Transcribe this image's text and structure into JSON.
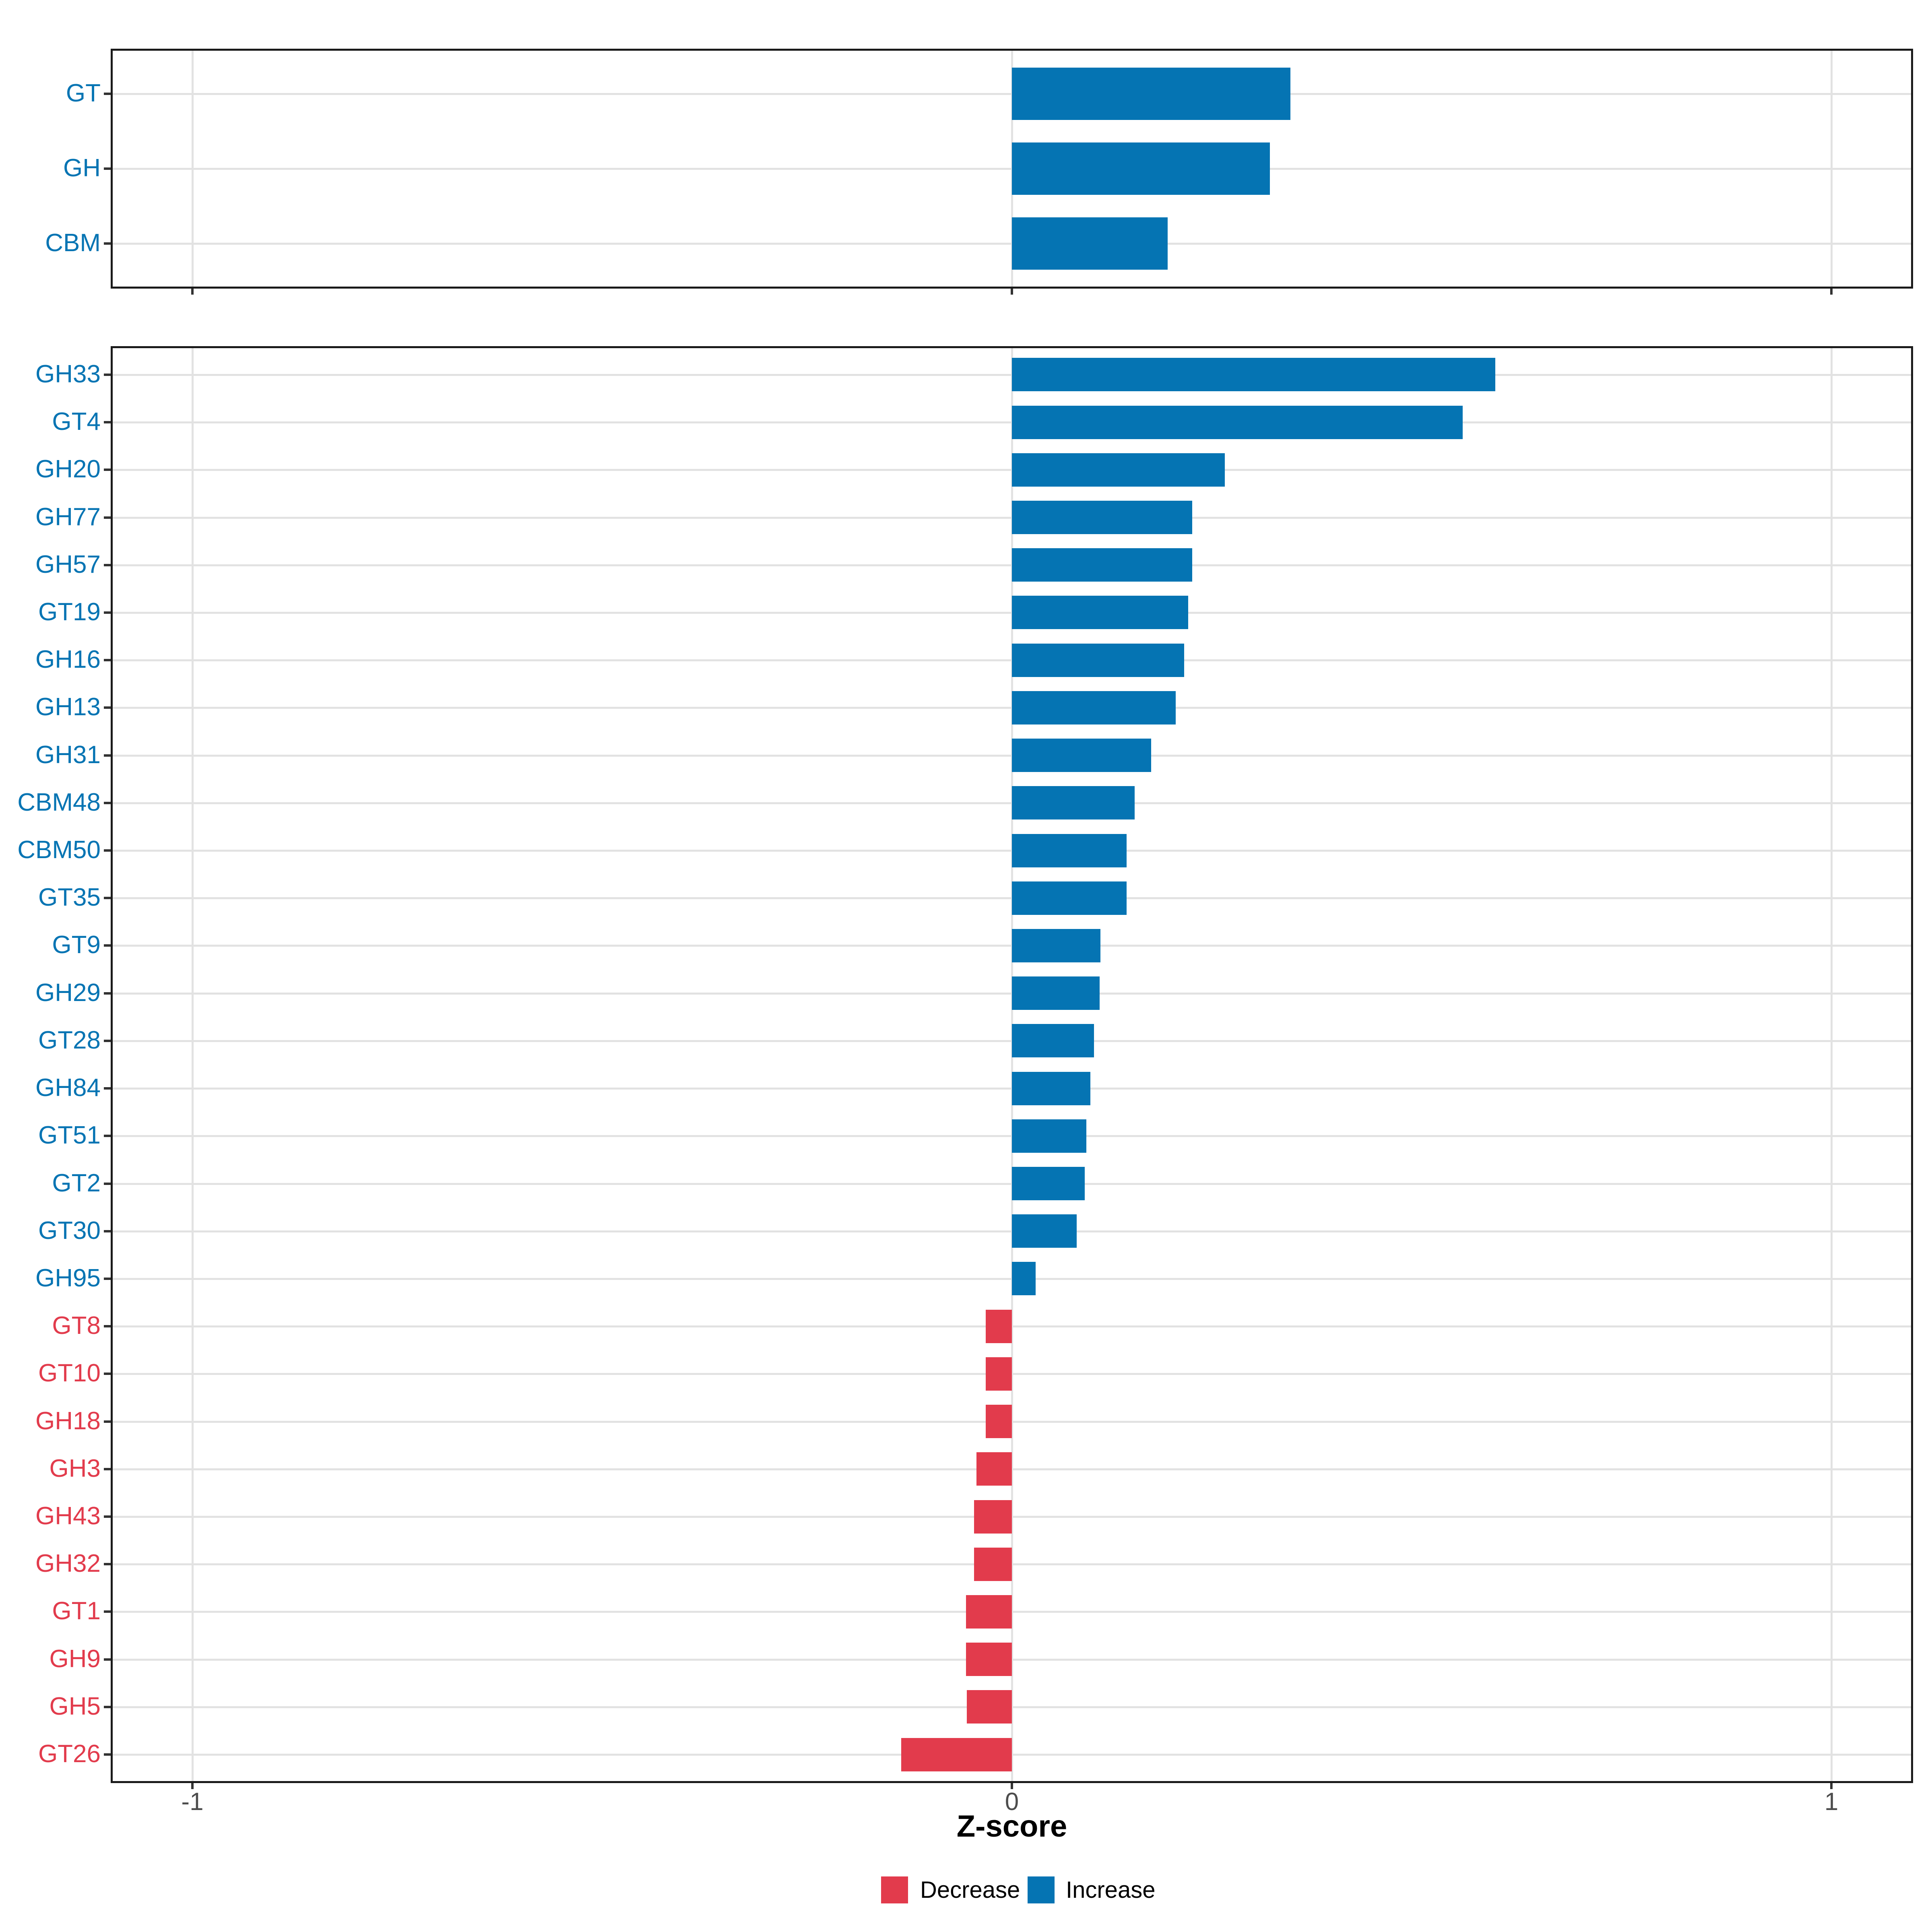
{
  "chart_data": {
    "type": "bar",
    "orientation": "horizontal",
    "xlabel": "Z-score",
    "xlim": [
      -1.1,
      1.1
    ],
    "x_ticks": [
      {
        "value": -1,
        "label": "-1"
      },
      {
        "value": 0,
        "label": "0"
      },
      {
        "value": 1,
        "label": "1"
      }
    ],
    "grid": "major gridlines only, light gray, white panel background, black panel border",
    "legend_position": "bottom-center",
    "legend": [
      {
        "label": "Decrease",
        "color": "#E23B4C"
      },
      {
        "label": "Increase",
        "color": "#0574B3"
      }
    ],
    "panels": [
      {
        "name": "cazyme-classes",
        "categories": [
          "GT",
          "GH",
          "CBM"
        ],
        "values": [
          0.34,
          0.315,
          0.19
        ]
      },
      {
        "name": "cazyme-families",
        "categories": [
          "GH33",
          "GT4",
          "GH20",
          "GH77",
          "GH57",
          "GT19",
          "GH16",
          "GH13",
          "GH31",
          "CBM48",
          "CBM50",
          "GT35",
          "GT9",
          "GH29",
          "GT28",
          "GH84",
          "GT51",
          "GT2",
          "GT30",
          "GH95",
          "GT8",
          "GT10",
          "GH18",
          "GH3",
          "GH43",
          "GH32",
          "GT1",
          "GH9",
          "GH5",
          "GT26"
        ],
        "values": [
          0.59,
          0.55,
          0.26,
          0.22,
          0.22,
          0.215,
          0.21,
          0.2,
          0.17,
          0.15,
          0.14,
          0.14,
          0.108,
          0.107,
          0.1,
          0.096,
          0.091,
          0.089,
          0.079,
          0.029,
          -0.032,
          -0.032,
          -0.032,
          -0.043,
          -0.046,
          -0.046,
          -0.056,
          -0.056,
          -0.055,
          -0.135
        ]
      }
    ],
    "colors": {
      "increase": "#0574B3",
      "decrease": "#E23B4C",
      "grid": "#E2E2E2",
      "panel_border": "#1A1A1A",
      "tick": "#333333",
      "axis_text": "#4D4D4D",
      "axis_title": "#000000",
      "background": "#FFFFFF"
    }
  }
}
